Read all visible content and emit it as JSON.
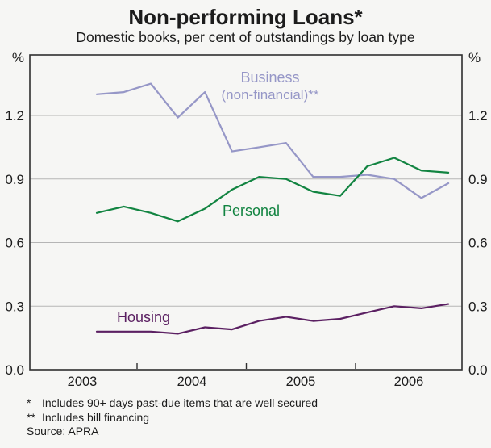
{
  "figure": {
    "title": "Non-performing Loans*",
    "subtitle": "Domestic books, per cent of outstandings by loan type",
    "unit": "%"
  },
  "chart_data": {
    "type": "line",
    "title": "Non-performing Loans*",
    "subtitle": "Domestic books, per cent of outstandings by loan type",
    "ylabel": "%",
    "ylim": [
      0,
      1.5
    ],
    "yticks": [
      "0.0",
      "0.3",
      "0.6",
      "0.9",
      "1.2"
    ],
    "ytick_labels_both_sides": true,
    "grid": true,
    "x_unit": "quarterly (plotted mid-quarter), read from year axis",
    "x": [
      2003.63,
      2003.88,
      2004.13,
      2004.38,
      2004.63,
      2004.88,
      2005.13,
      2005.38,
      2005.63,
      2005.88,
      2006.13,
      2006.38,
      2006.63,
      2006.88
    ],
    "x_year_labels": [
      "2003",
      "2004",
      "2005",
      "2006"
    ],
    "legend": "inline labels on chart",
    "series": [
      {
        "id": "business",
        "name": "Business (non-financial)**",
        "color": "#9697c7",
        "values": [
          1.3,
          1.31,
          1.35,
          1.19,
          1.31,
          1.03,
          1.05,
          1.07,
          0.91,
          0.91,
          0.92,
          0.9,
          0.81,
          0.88
        ]
      },
      {
        "id": "personal",
        "name": "Personal",
        "color": "#128441",
        "values": [
          0.74,
          0.77,
          0.74,
          0.7,
          0.76,
          0.85,
          0.91,
          0.9,
          0.84,
          0.82,
          0.96,
          1.0,
          0.94,
          0.93
        ]
      },
      {
        "id": "housing",
        "name": "Housing",
        "color": "#5b2062",
        "values": [
          0.18,
          0.18,
          0.18,
          0.17,
          0.2,
          0.19,
          0.23,
          0.25,
          0.23,
          0.24,
          0.27,
          0.3,
          0.29,
          0.31
        ]
      }
    ]
  },
  "series_labels": {
    "business_line1": "Business",
    "business_line2": "(non-financial)**",
    "personal": "Personal",
    "housing": "Housing"
  },
  "footnotes": [
    {
      "marker": "*",
      "text": "Includes 90+ days past-due items that are well secured"
    },
    {
      "marker": "**",
      "text": "Includes bill financing"
    }
  ],
  "source": "Source: APRA"
}
